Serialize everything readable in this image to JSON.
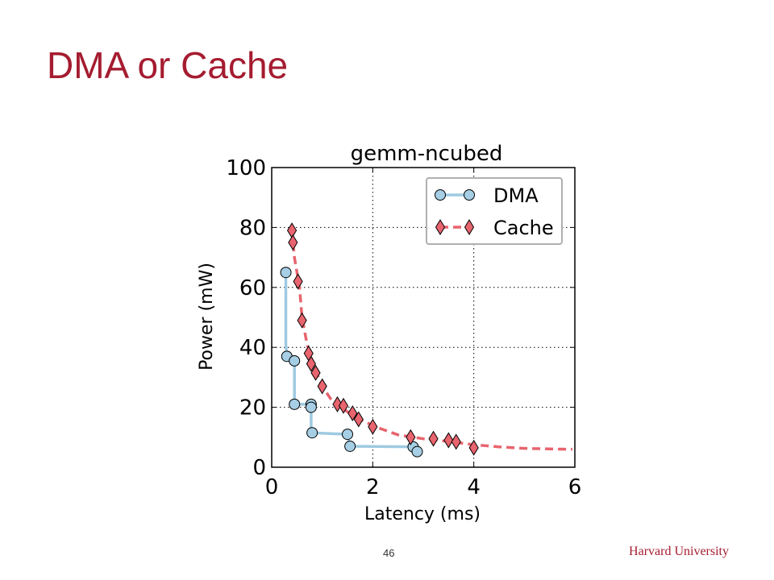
{
  "slide": {
    "title": "DMA or Cache",
    "page_number": "46",
    "footer": "Harvard University"
  },
  "colors": {
    "title": "#a51c30",
    "dma": "#9ecae1",
    "dma_marker": "#a6cfe5",
    "cache": "#e8646e",
    "cache_marker": "#e8646e"
  },
  "chart_data": {
    "type": "scatter",
    "title": "gemm-ncubed",
    "xlabel": "Latency (ms)",
    "ylabel": "Power (mW)",
    "xlim": [
      0,
      6
    ],
    "ylim": [
      0,
      100
    ],
    "xticks": [
      0,
      2,
      4,
      6
    ],
    "yticks": [
      0,
      20,
      40,
      60,
      80,
      100
    ],
    "grid": true,
    "legend": "top-right",
    "series": [
      {
        "name": "DMA",
        "marker": "circle",
        "line": "solid",
        "points": [
          [
            0.28,
            65
          ],
          [
            0.3,
            37
          ],
          [
            0.45,
            35.5
          ],
          [
            0.45,
            21
          ],
          [
            0.78,
            21
          ],
          [
            0.78,
            20
          ],
          [
            0.8,
            11.5
          ],
          [
            1.5,
            11
          ],
          [
            1.55,
            7
          ],
          [
            2.8,
            6.8
          ],
          [
            2.88,
            5.2
          ]
        ],
        "frontier": [
          [
            0.28,
            65
          ],
          [
            0.28,
            41
          ],
          [
            0.3,
            37
          ],
          [
            0.45,
            35.5
          ],
          [
            0.45,
            21
          ],
          [
            0.78,
            21
          ],
          [
            0.78,
            11.5
          ],
          [
            1.5,
            11
          ],
          [
            1.55,
            7
          ],
          [
            2.8,
            6.8
          ],
          [
            2.88,
            5.2
          ]
        ]
      },
      {
        "name": "Cache",
        "marker": "diamond",
        "line": "dashed",
        "points": [
          [
            0.4,
            79
          ],
          [
            0.42,
            75
          ],
          [
            0.52,
            62
          ],
          [
            0.6,
            49
          ],
          [
            0.73,
            38
          ],
          [
            0.78,
            34.5
          ],
          [
            0.87,
            31.5
          ],
          [
            1.0,
            27
          ],
          [
            1.3,
            21
          ],
          [
            1.42,
            20.5
          ],
          [
            1.6,
            18
          ],
          [
            1.72,
            16
          ],
          [
            2.0,
            13.5
          ],
          [
            2.75,
            10
          ],
          [
            3.2,
            9.5
          ],
          [
            3.5,
            9
          ],
          [
            3.65,
            8.5
          ],
          [
            4.0,
            6.5
          ]
        ],
        "frontier": [
          [
            0.4,
            79
          ],
          [
            0.45,
            70
          ],
          [
            0.55,
            60
          ],
          [
            0.6,
            50
          ],
          [
            0.7,
            41
          ],
          [
            0.85,
            33
          ],
          [
            1.0,
            27
          ],
          [
            1.2,
            22
          ],
          [
            1.5,
            18.5
          ],
          [
            1.8,
            15.5
          ],
          [
            2.1,
            13.2
          ],
          [
            2.5,
            10.8
          ],
          [
            3.0,
            9.5
          ],
          [
            3.5,
            8.6
          ],
          [
            4.0,
            7.5
          ],
          [
            4.5,
            6.8
          ],
          [
            5.0,
            6.3
          ],
          [
            5.5,
            6.1
          ],
          [
            5.95,
            6.0
          ]
        ]
      }
    ]
  }
}
